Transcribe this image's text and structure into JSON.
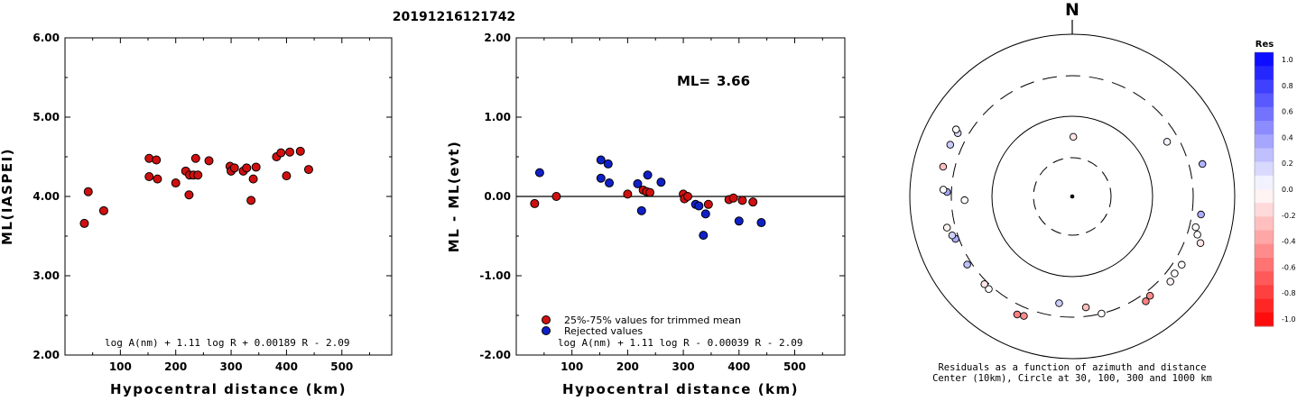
{
  "page_title": "20191216121742",
  "chart_data": [
    {
      "type": "scatter",
      "ylabel": "ML(IASPEI)",
      "xlabel": "Hypocentral distance (km)",
      "xlim": [
        0,
        590
      ],
      "ylim": [
        2.0,
        6.0
      ],
      "xticks": [
        "100",
        "200",
        "300",
        "400",
        "500"
      ],
      "yticks": [
        "2.00",
        "3.00",
        "4.00",
        "5.00",
        "6.00"
      ],
      "formula": "log A(nm) + 1.11 log R + 0.00189 R - 2.09",
      "point_color": "#d01010",
      "series": [
        {
          "points": [
            [
              35,
              3.66
            ],
            [
              42,
              4.06
            ],
            [
              70,
              3.82
            ],
            [
              152,
              4.48
            ],
            [
              152,
              4.25
            ],
            [
              165,
              4.46
            ],
            [
              167,
              4.22
            ],
            [
              200,
              4.17
            ],
            [
              218,
              4.32
            ],
            [
              224,
              4.02
            ],
            [
              225,
              4.27
            ],
            [
              232,
              4.27
            ],
            [
              236,
              4.48
            ],
            [
              240,
              4.27
            ],
            [
              260,
              4.45
            ],
            [
              298,
              4.38
            ],
            [
              300,
              4.32
            ],
            [
              306,
              4.36
            ],
            [
              322,
              4.32
            ],
            [
              328,
              4.36
            ],
            [
              336,
              3.95
            ],
            [
              340,
              4.22
            ],
            [
              345,
              4.37
            ],
            [
              382,
              4.5
            ],
            [
              390,
              4.55
            ],
            [
              400,
              4.26
            ],
            [
              406,
              4.56
            ],
            [
              425,
              4.57
            ],
            [
              440,
              4.34
            ]
          ]
        }
      ]
    },
    {
      "type": "scatter",
      "ylabel": "ML - ML(evt)",
      "xlabel": "Hypocentral distance (km)",
      "xlim": [
        0,
        590
      ],
      "ylim": [
        -2.0,
        2.0
      ],
      "xticks": [
        "100",
        "200",
        "300",
        "400",
        "500"
      ],
      "yticks": [
        "-2.00",
        "-1.00",
        "0.00",
        "1.00",
        "2.00"
      ],
      "reference_line": 0,
      "ml_label": "ML=",
      "ml_value": "3.66",
      "formula": "log A(nm) + 1.11 log R - 0.00039 R - 2.09",
      "legend": [
        {
          "label": "25%-75% values for trimmed mean",
          "color": "#d01010"
        },
        {
          "label": "Rejected values",
          "color": "#1020c8"
        }
      ],
      "series": [
        {
          "name": "25%-75% values for trimmed mean",
          "color": "#d01010",
          "points": [
            [
              33,
              -0.09
            ],
            [
              72,
              0.0
            ],
            [
              200,
              0.03
            ],
            [
              228,
              0.08
            ],
            [
              234,
              0.06
            ],
            [
              240,
              0.05
            ],
            [
              300,
              0.03
            ],
            [
              302,
              -0.03
            ],
            [
              308,
              0.0
            ],
            [
              345,
              -0.1
            ],
            [
              382,
              -0.04
            ],
            [
              390,
              -0.02
            ],
            [
              406,
              -0.05
            ],
            [
              425,
              -0.07
            ]
          ]
        },
        {
          "name": "Rejected values",
          "color": "#1020c8",
          "points": [
            [
              42,
              0.3
            ],
            [
              152,
              0.46
            ],
            [
              152,
              0.23
            ],
            [
              165,
              0.41
            ],
            [
              167,
              0.17
            ],
            [
              218,
              0.16
            ],
            [
              225,
              -0.18
            ],
            [
              236,
              0.27
            ],
            [
              260,
              0.18
            ],
            [
              322,
              -0.1
            ],
            [
              328,
              -0.12
            ],
            [
              336,
              -0.49
            ],
            [
              340,
              -0.22
            ],
            [
              400,
              -0.31
            ],
            [
              440,
              -0.33
            ]
          ]
        }
      ]
    }
  ],
  "polar": {
    "north_label": "N",
    "caption_line1": "Residuals as a function of azimuth and distance",
    "caption_line2": "Center (10km), Circle at 30, 100, 300 and 1000 km",
    "stations": [
      {
        "az": 1,
        "dist": 55,
        "res": -0.1
      },
      {
        "az": 60,
        "dist": 220,
        "res": 0.05
      },
      {
        "az": 76,
        "dist": 440,
        "res": 0.3
      },
      {
        "az": 98,
        "dist": 390,
        "res": 0.32
      },
      {
        "az": 104,
        "dist": 360,
        "res": 0.0
      },
      {
        "az": 107,
        "dist": 400,
        "res": 0.0
      },
      {
        "az": 110,
        "dist": 470,
        "res": -0.1
      },
      {
        "az": 122,
        "dist": 380,
        "res": 0.0
      },
      {
        "az": 127,
        "dist": 370,
        "res": 0.0
      },
      {
        "az": 131,
        "dist": 390,
        "res": -0.05
      },
      {
        "az": 142,
        "dist": 350,
        "res": -0.45
      },
      {
        "az": 145,
        "dist": 370,
        "res": -0.5
      },
      {
        "az": 166,
        "dist": 300,
        "res": 0.0
      },
      {
        "az": 173,
        "dist": 235,
        "res": -0.25
      },
      {
        "az": 187,
        "dist": 210,
        "res": 0.2
      },
      {
        "az": 202,
        "dist": 380,
        "res": -0.45
      },
      {
        "az": 205,
        "dist": 395,
        "res": -0.5
      },
      {
        "az": 222,
        "dist": 335,
        "res": 0.0
      },
      {
        "az": 225,
        "dist": 330,
        "res": -0.1
      },
      {
        "az": 237,
        "dist": 340,
        "res": 0.25
      },
      {
        "az": 250,
        "dist": 330,
        "res": 0.32
      },
      {
        "az": 252,
        "dist": 350,
        "res": 0.18
      },
      {
        "az": 256,
        "dist": 380,
        "res": -0.05
      },
      {
        "az": 268,
        "dist": 210,
        "res": 0.0
      },
      {
        "az": 272,
        "dist": 340,
        "res": 0.35
      },
      {
        "az": 273,
        "dist": 380,
        "res": 0.0
      },
      {
        "az": 283,
        "dist": 420,
        "res": -0.25
      },
      {
        "az": 293,
        "dist": 420,
        "res": 0.2
      },
      {
        "az": 299,
        "dist": 400,
        "res": 0.15
      },
      {
        "az": 300,
        "dist": 440,
        "res": 0.0
      }
    ],
    "colorbar": {
      "title": "Res",
      "labels": [
        "1.0",
        "0.8",
        "0.6",
        "0.4",
        "0.2",
        "0.0",
        "-0.2",
        "-0.4",
        "-0.6",
        "-0.8",
        "-1.0"
      ]
    }
  }
}
